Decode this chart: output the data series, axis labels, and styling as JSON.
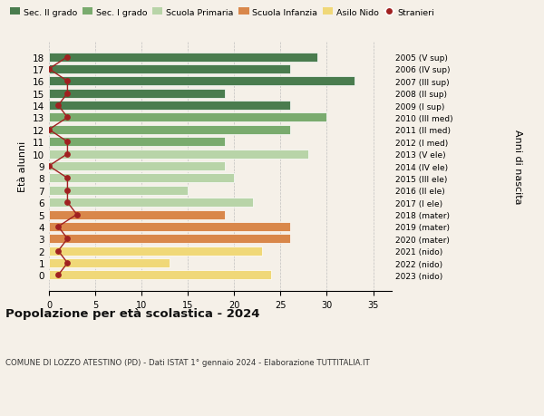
{
  "ages": [
    18,
    17,
    16,
    15,
    14,
    13,
    12,
    11,
    10,
    9,
    8,
    7,
    6,
    5,
    4,
    3,
    2,
    1,
    0
  ],
  "bar_values": [
    29,
    26,
    33,
    19,
    26,
    30,
    26,
    19,
    28,
    19,
    20,
    15,
    22,
    19,
    26,
    26,
    23,
    13,
    24
  ],
  "right_labels": [
    "2005 (V sup)",
    "2006 (IV sup)",
    "2007 (III sup)",
    "2008 (II sup)",
    "2009 (I sup)",
    "2010 (III med)",
    "2011 (II med)",
    "2012 (I med)",
    "2013 (V ele)",
    "2014 (IV ele)",
    "2015 (III ele)",
    "2016 (II ele)",
    "2017 (I ele)",
    "2018 (mater)",
    "2019 (mater)",
    "2020 (mater)",
    "2021 (nido)",
    "2022 (nido)",
    "2023 (nido)"
  ],
  "bar_colors": [
    "#4a7c4e",
    "#4a7c4e",
    "#4a7c4e",
    "#4a7c4e",
    "#4a7c4e",
    "#7aab6e",
    "#7aab6e",
    "#7aab6e",
    "#b8d4a8",
    "#b8d4a8",
    "#b8d4a8",
    "#b8d4a8",
    "#b8d4a8",
    "#d9874a",
    "#d9874a",
    "#d9874a",
    "#f0d878",
    "#f0d878",
    "#f0d878"
  ],
  "legend_labels": [
    "Sec. II grado",
    "Sec. I grado",
    "Scuola Primaria",
    "Scuola Infanzia",
    "Asilo Nido",
    "Stranieri"
  ],
  "legend_colors": [
    "#4a7c4e",
    "#7aab6e",
    "#b8d4a8",
    "#d9874a",
    "#f0d878",
    "#a02020"
  ],
  "title": "Popolazione per età scolastica - 2024",
  "subtitle": "COMUNE DI LOZZO ATESTINO (PD) - Dati ISTAT 1° gennaio 2024 - Elaborazione TUTTITALIA.IT",
  "ylabel": "Età alunni",
  "right_ylabel": "Anni di nascita",
  "xlim": [
    0,
    37
  ],
  "xticks": [
    0,
    5,
    10,
    15,
    20,
    25,
    30,
    35
  ],
  "bar_height": 0.75,
  "stranieri_color": "#a02020",
  "stranieri_x": [
    2,
    0,
    2,
    2,
    1,
    2,
    0,
    2,
    2,
    0,
    2,
    2,
    2,
    3,
    1,
    2,
    1,
    2,
    1
  ],
  "bg_color": "#f5f0e8"
}
